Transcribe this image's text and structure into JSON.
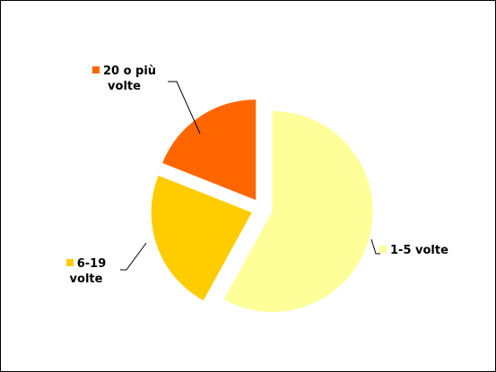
{
  "chart_data": {
    "type": "pie",
    "categories": [
      "1-5 volte",
      "6-19 volte",
      "20 o più volte"
    ],
    "values": [
      58,
      23,
      19
    ],
    "colors": [
      "#ffff99",
      "#ffcc00",
      "#ff6600"
    ],
    "exploded": true
  }
}
